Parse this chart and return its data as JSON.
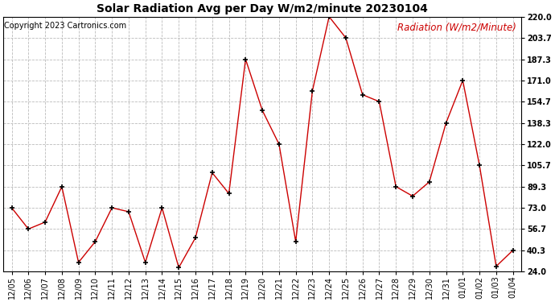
{
  "title": "Solar Radiation Avg per Day W/m2/minute 20230104",
  "copyright": "Copyright 2023 Cartronics.com",
  "legend_label": "Radiation (W/m2/Minute)",
  "x_labels": [
    "12/05",
    "12/06",
    "12/07",
    "12/08",
    "12/09",
    "12/10",
    "12/11",
    "12/12",
    "12/13",
    "12/14",
    "12/15",
    "12/16",
    "12/17",
    "12/18",
    "12/19",
    "12/20",
    "12/21",
    "12/22",
    "12/23",
    "12/24",
    "12/25",
    "12/26",
    "12/27",
    "12/28",
    "12/29",
    "12/30",
    "12/31",
    "01/01",
    "01/02",
    "01/03",
    "01/04"
  ],
  "y_values": [
    73.0,
    56.7,
    62.0,
    89.3,
    31.0,
    47.0,
    73.0,
    70.0,
    31.0,
    73.0,
    27.0,
    50.0,
    100.0,
    84.0,
    187.3,
    148.0,
    122.0,
    47.0,
    163.0,
    220.0,
    203.7,
    160.0,
    154.7,
    89.3,
    82.0,
    93.0,
    138.3,
    171.0,
    105.7,
    28.0,
    40.3
  ],
  "y_ticks": [
    24.0,
    40.3,
    56.7,
    73.0,
    89.3,
    105.7,
    122.0,
    138.3,
    154.7,
    171.0,
    187.3,
    203.7,
    220.0
  ],
  "ylim_min": 24.0,
  "ylim_max": 220.0,
  "line_color": "#cc0000",
  "marker": "+",
  "marker_color": "#000000",
  "marker_size": 4,
  "marker_linewidth": 1.2,
  "bg_color": "#ffffff",
  "grid_color": "#bbbbbb",
  "title_fontsize": 10,
  "tick_fontsize": 7,
  "copyright_fontsize": 7,
  "legend_fontsize": 8.5,
  "line_width": 1.0
}
